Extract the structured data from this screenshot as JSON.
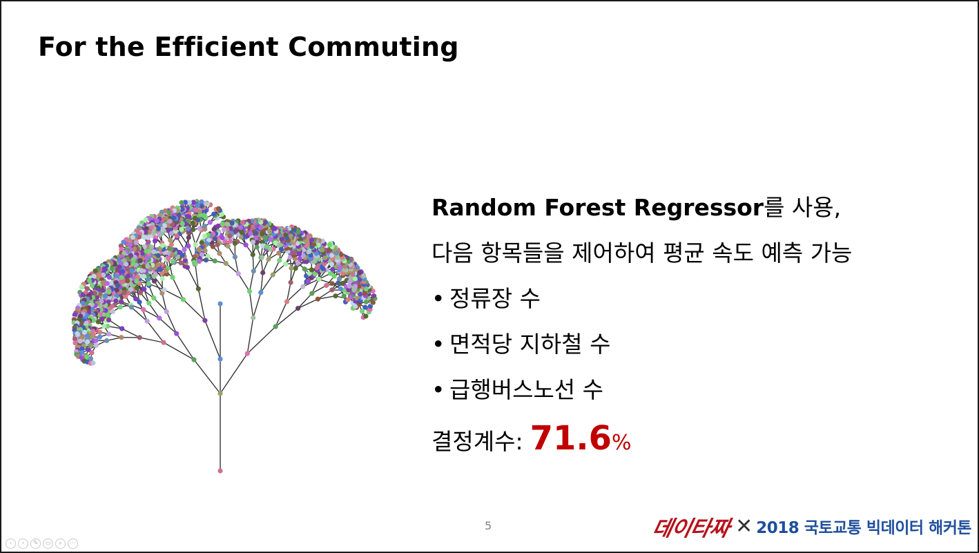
{
  "slide": {
    "title": "For the Efficient Commuting",
    "page_number": "5"
  },
  "content": {
    "intro_bold": "Random Forest Regressor",
    "intro_rest": "를 사용,",
    "line2": "다음 항목들을 제어하여 평균 속도 예측 가능",
    "bullets": [
      "정류장 수",
      "면적당 지하철 수",
      "급행버스노선 수"
    ],
    "r2_label": "결정계수:",
    "r2_value": "71.6",
    "r2_unit": "%"
  },
  "footer": {
    "logo_script": "데이타짜",
    "logo_x": "✕",
    "logo_event": "2018 국토교통 빅데이터 해커톤"
  },
  "nav": {
    "icons": [
      "prev-icon",
      "next-icon",
      "pen-icon",
      "slides-icon",
      "zoom-icon",
      "more-icon"
    ],
    "glyphs": [
      "‹",
      "›",
      "✎",
      "▭",
      "⌕",
      "⋯"
    ]
  },
  "colors": {
    "accent": "#c00000",
    "logo_red": "#b5121b",
    "logo_blue": "#1f4e9c"
  }
}
